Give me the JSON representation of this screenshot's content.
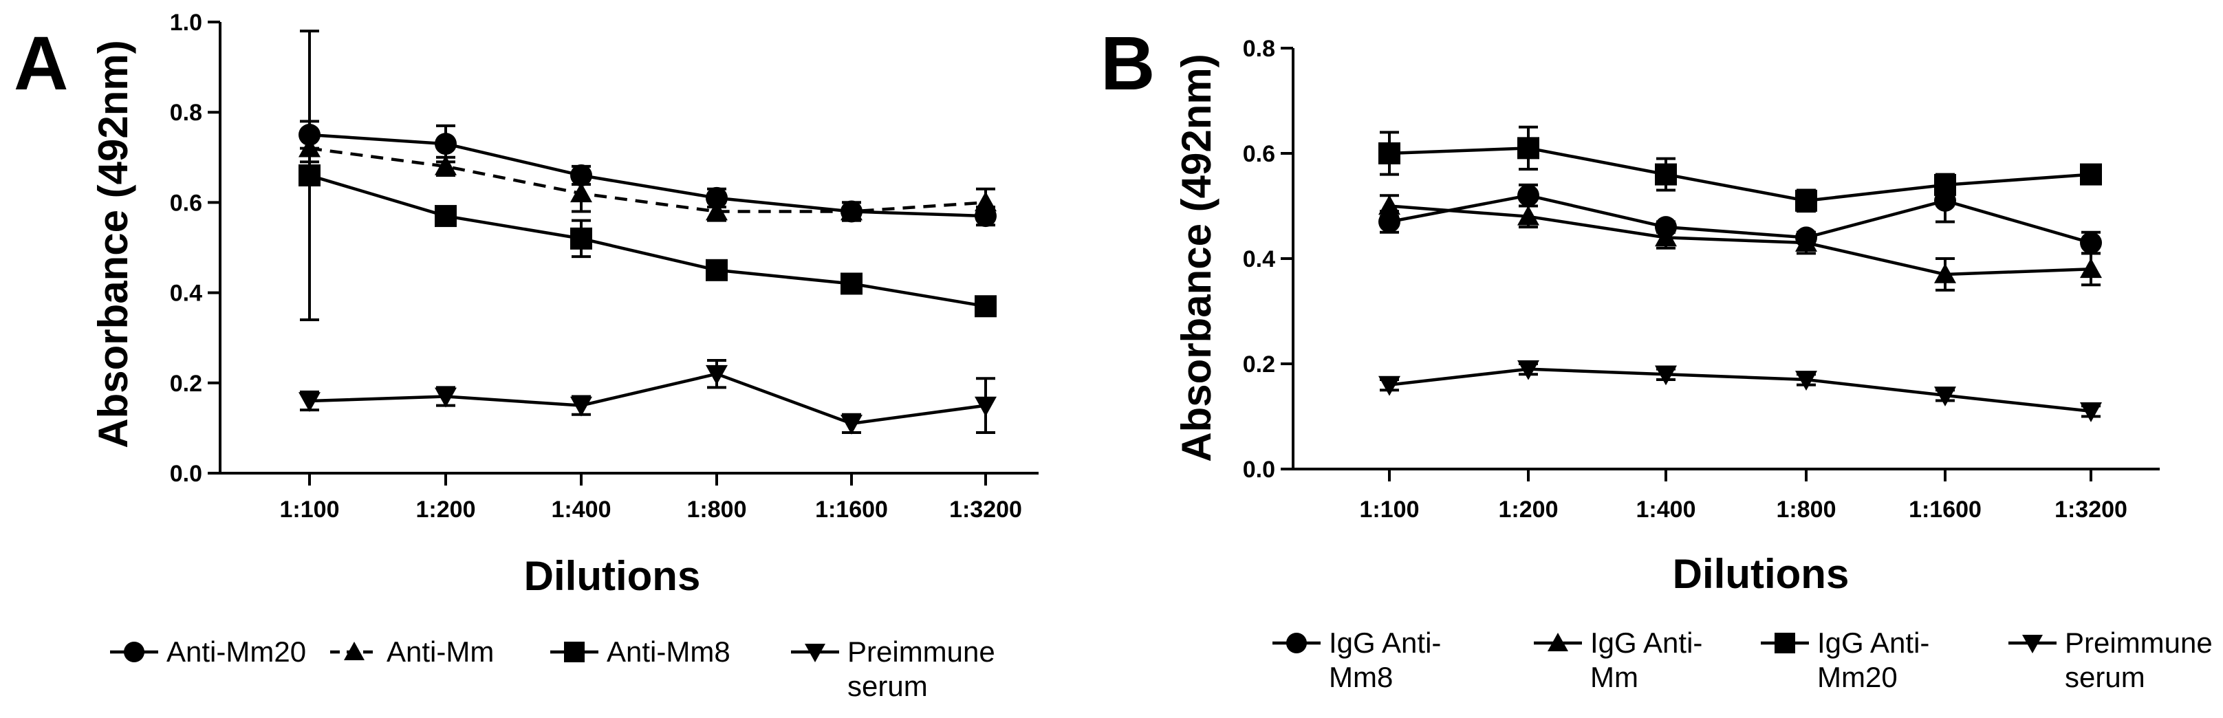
{
  "chart_data": [
    {
      "panel_label": "A",
      "type": "line",
      "xlabel": "Dilutions",
      "ylabel": "Absorbance (492nm)",
      "ylim": [
        0,
        1
      ],
      "yticks": [
        "0.0",
        "0.2",
        "0.4",
        "0.6",
        "0.8",
        "1.0"
      ],
      "categories": [
        "1:100",
        "1:200",
        "1:400",
        "1:800",
        "1:1600",
        "1:3200"
      ],
      "grid": false,
      "legend": "bottom",
      "series": [
        {
          "name": "Anti-Mm20",
          "marker": "circle",
          "dashed": false,
          "values": [
            0.75,
            0.73,
            0.66,
            0.61,
            0.58,
            0.57
          ],
          "errors": [
            0.03,
            0.04,
            0.02,
            0.02,
            0.02,
            0.02
          ]
        },
        {
          "name": "Anti-Mm",
          "marker": "triangle-up",
          "dashed": true,
          "values": [
            0.72,
            0.68,
            0.62,
            0.58,
            0.58,
            0.6
          ],
          "errors": [
            0.03,
            0.02,
            0.04,
            0.02,
            0.02,
            0.03
          ]
        },
        {
          "name": "Anti-Mm8",
          "marker": "square",
          "dashed": false,
          "values": [
            0.66,
            0.57,
            0.52,
            0.45,
            0.42,
            0.37
          ],
          "errors": [
            0.32,
            0.02,
            0.04,
            0.02,
            0.02,
            0.02
          ]
        },
        {
          "name": "Preimmune serum",
          "legend_lines": [
            "Preimmune",
            "serum"
          ],
          "marker": "triangle-down",
          "dashed": false,
          "values": [
            0.16,
            0.17,
            0.15,
            0.22,
            0.11,
            0.15
          ],
          "errors": [
            0.02,
            0.02,
            0.02,
            0.03,
            0.02,
            0.06
          ]
        }
      ]
    },
    {
      "panel_label": "B",
      "type": "line",
      "xlabel": "Dilutions",
      "ylabel": "Absorbance (492nm)",
      "ylim": [
        0,
        0.8
      ],
      "yticks": [
        "0.0",
        "0.2",
        "0.4",
        "0.6",
        "0.8"
      ],
      "categories": [
        "1:100",
        "1:200",
        "1:400",
        "1:800",
        "1:1600",
        "1:3200"
      ],
      "grid": false,
      "legend": "bottom",
      "series": [
        {
          "name": "IgG Anti-Mm8",
          "legend_lines": [
            "IgG Anti-",
            "Mm8"
          ],
          "marker": "circle",
          "dashed": false,
          "values": [
            0.47,
            0.52,
            0.46,
            0.44,
            0.51,
            0.43
          ],
          "errors": [
            0.02,
            0.02,
            0.01,
            0.01,
            0.04,
            0.02
          ]
        },
        {
          "name": "IgG Anti-Mm",
          "legend_lines": [
            "IgG Anti-",
            "Mm"
          ],
          "marker": "triangle-up",
          "dashed": false,
          "values": [
            0.5,
            0.48,
            0.44,
            0.43,
            0.37,
            0.38
          ],
          "errors": [
            0.02,
            0.02,
            0.02,
            0.02,
            0.03,
            0.03
          ]
        },
        {
          "name": "IgG Anti-Mm20",
          "legend_lines": [
            "IgG Anti-",
            "Mm20"
          ],
          "marker": "square",
          "dashed": false,
          "values": [
            0.6,
            0.61,
            0.56,
            0.51,
            0.54,
            0.56
          ],
          "errors": [
            0.04,
            0.04,
            0.03,
            0.02,
            0.02,
            0.01
          ]
        },
        {
          "name": "Preimmune serum",
          "legend_lines": [
            "Preimmune",
            "serum"
          ],
          "marker": "triangle-down",
          "dashed": false,
          "values": [
            0.16,
            0.19,
            0.18,
            0.17,
            0.14,
            0.11
          ],
          "errors": [
            0.01,
            0.01,
            0.01,
            0.01,
            0.01,
            0.01
          ]
        }
      ]
    }
  ]
}
